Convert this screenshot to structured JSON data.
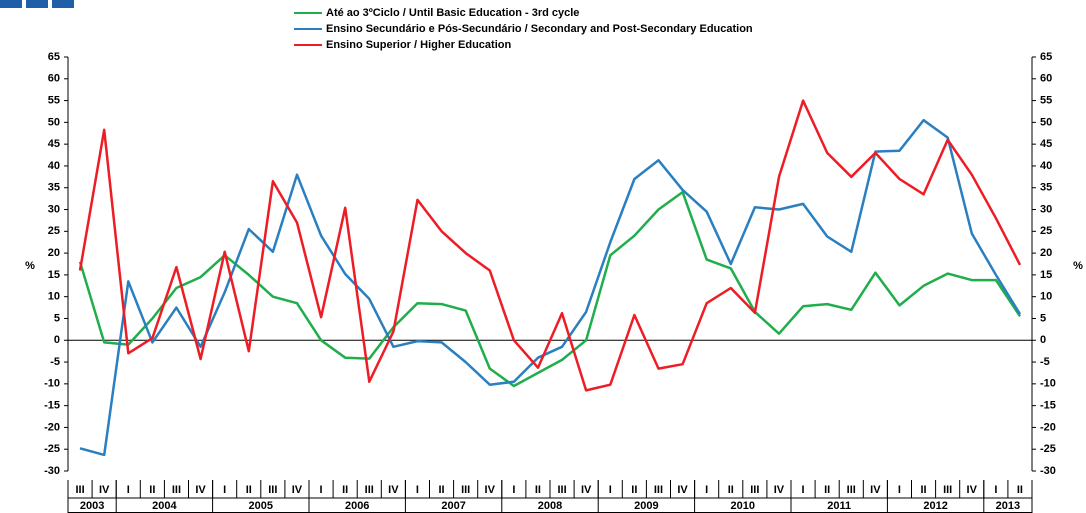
{
  "chart_data": {
    "type": "line",
    "legend": "top",
    "ylabel": "%",
    "y2label": "%",
    "ylim": [
      -30,
      65
    ],
    "yticks": [
      -30,
      -25,
      -20,
      -15,
      -10,
      -5,
      0,
      5,
      10,
      15,
      20,
      25,
      30,
      35,
      40,
      45,
      50,
      55,
      60,
      65
    ],
    "y2lim": [
      -30,
      65
    ],
    "y2ticks": [
      -30,
      -25,
      -20,
      -15,
      -10,
      -5,
      0,
      5,
      10,
      15,
      20,
      25,
      30,
      35,
      40,
      45,
      50,
      55,
      60,
      65
    ],
    "categories": [
      "III",
      "IV",
      "I",
      "II",
      "III",
      "IV",
      "I",
      "II",
      "III",
      "IV",
      "I",
      "II",
      "III",
      "IV",
      "I",
      "II",
      "III",
      "IV",
      "I",
      "II",
      "III",
      "IV",
      "I",
      "II",
      "III",
      "IV",
      "I",
      "II",
      "III",
      "IV",
      "I",
      "II",
      "III",
      "IV",
      "I",
      "II",
      "III",
      "IV",
      "I",
      "II"
    ],
    "years": [
      "2003",
      "2004",
      "2005",
      "2006",
      "2007",
      "2008",
      "2009",
      "2010",
      "2011",
      "2012",
      "2013"
    ],
    "series": [
      {
        "name": "Até ao 3ºCiclo / Until Basic Education - 3rd cycle",
        "color": "#1fae4b",
        "values": [
          18,
          -0.5,
          -1,
          5,
          12,
          14.5,
          19.5,
          15,
          10,
          8.5,
          0,
          -4,
          -4.2,
          3,
          8.5,
          8.3,
          6.8,
          -6.5,
          -10.5,
          -7.5,
          -4.5,
          0,
          19.5,
          24,
          30,
          34,
          18.5,
          16.5,
          6.5,
          1.5,
          7.8,
          8.3,
          7,
          15.5,
          8,
          12.5,
          15.3,
          13.8,
          13.8,
          5.5
        ]
      },
      {
        "name": "Ensino Secundário e Pós-Secundário / Secondary and Post-Secondary Education",
        "color": "#2a7fc1",
        "values": [
          -24.8,
          -26.3,
          13.5,
          -0.5,
          7.5,
          -1.5,
          11,
          25.5,
          20.3,
          38,
          24,
          15.2,
          9.5,
          -1.5,
          -0.2,
          -0.5,
          -5,
          -10.2,
          -9.5,
          -4,
          -1.5,
          6.5,
          22.5,
          37,
          41.3,
          34.5,
          29.5,
          17.5,
          30.5,
          30,
          31.3,
          23.8,
          20.3,
          43.3,
          43.5,
          50.5,
          46.5,
          24.5,
          15,
          6
        ]
      },
      {
        "name": "Ensino Superior / Higher Education",
        "color": "#ee1c25",
        "values": [
          16,
          48.3,
          -3,
          0.5,
          16.8,
          -4.3,
          20.3,
          -2.5,
          36.5,
          27,
          5.3,
          30.4,
          -9.5,
          2,
          32.2,
          25,
          20,
          16,
          0,
          -6.3,
          6.2,
          -11.5,
          -10.2,
          5.8,
          -6.5,
          -5.5,
          8.5,
          12,
          6.3,
          37.5,
          55,
          43,
          37.5,
          43,
          37,
          33.5,
          46,
          38,
          28,
          17.3
        ]
      }
    ]
  }
}
